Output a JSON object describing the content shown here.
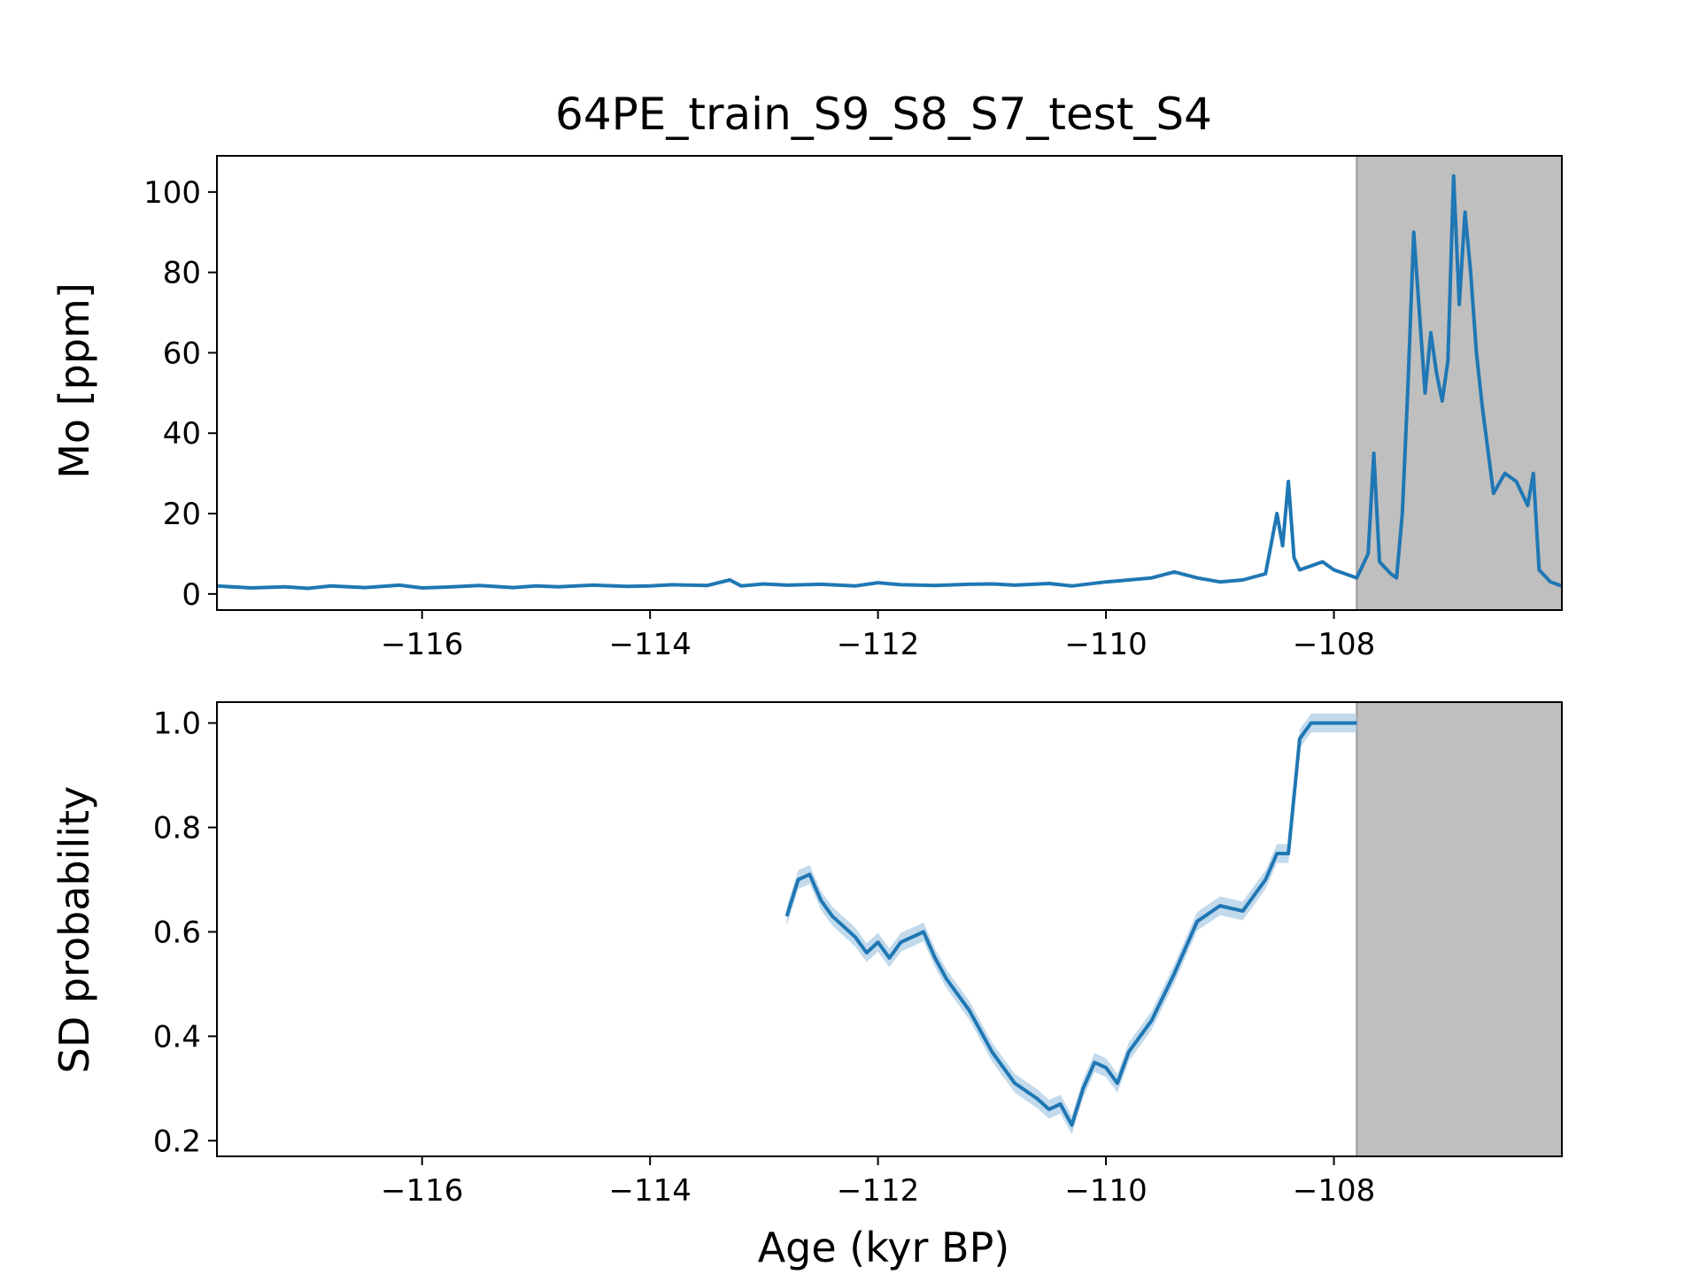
{
  "figure": {
    "title": "64PE_train_S9_S8_S7_test_S4",
    "xlabel": "Age (kyr BP)",
    "shade_color": "#bfbfbf",
    "line_color": "#1f77b4",
    "band_color": "#aecde6"
  },
  "chart_data": [
    {
      "type": "line",
      "title": "64PE_train_S9_S8_S7_test_S4",
      "xlabel": "",
      "ylabel": "Mo [ppm]",
      "xlim": [
        -117.8,
        -106.0
      ],
      "ylim": [
        -4,
        109
      ],
      "xticks": [
        -116,
        -114,
        -112,
        -110,
        -108
      ],
      "xtick_labels": [
        "−116",
        "−114",
        "−112",
        "−110",
        "−108"
      ],
      "yticks": [
        0,
        20,
        40,
        60,
        80,
        100
      ],
      "ytick_labels": [
        "0",
        "20",
        "40",
        "60",
        "80",
        "100"
      ],
      "shaded_region": [
        -107.8,
        -106.0
      ],
      "grid": false,
      "series": [
        {
          "x": [
            -117.8,
            -117.5,
            -117.2,
            -117.0,
            -116.8,
            -116.5,
            -116.2,
            -116.0,
            -115.8,
            -115.5,
            -115.2,
            -115.0,
            -114.8,
            -114.5,
            -114.2,
            -114.0,
            -113.8,
            -113.5,
            -113.3,
            -113.2,
            -113.0,
            -112.8,
            -112.5,
            -112.2,
            -112.0,
            -111.8,
            -111.5,
            -111.2,
            -111.0,
            -110.8,
            -110.5,
            -110.3,
            -110.0,
            -109.8,
            -109.6,
            -109.4,
            -109.2,
            -109.0,
            -108.8,
            -108.6,
            -108.5,
            -108.45,
            -108.4,
            -108.35,
            -108.3,
            -108.2,
            -108.1,
            -108.0,
            -107.9,
            -107.8,
            -107.7,
            -107.65,
            -107.6,
            -107.5,
            -107.45,
            -107.4,
            -107.35,
            -107.3,
            -107.25,
            -107.2,
            -107.15,
            -107.1,
            -107.05,
            -107.0,
            -106.95,
            -106.9,
            -106.85,
            -106.8,
            -106.75,
            -106.7,
            -106.6,
            -106.5,
            -106.4,
            -106.3,
            -106.25,
            -106.2,
            -106.1,
            -106.0
          ],
          "y": [
            2,
            1.5,
            1.8,
            1.4,
            2,
            1.6,
            2.2,
            1.5,
            1.7,
            2.1,
            1.6,
            2,
            1.8,
            2.2,
            1.9,
            2,
            2.3,
            2.1,
            3.5,
            2,
            2.5,
            2.2,
            2.4,
            2,
            2.8,
            2.3,
            2.1,
            2.4,
            2.5,
            2.2,
            2.6,
            2,
            3,
            3.5,
            4,
            5.5,
            4,
            3,
            3.5,
            5,
            20,
            12,
            28,
            9,
            6,
            7,
            8,
            6,
            5,
            4,
            10,
            35,
            8,
            5,
            4,
            20,
            52,
            90,
            70,
            50,
            65,
            55,
            48,
            58,
            104,
            72,
            95,
            80,
            60,
            47,
            25,
            30,
            28,
            22,
            30,
            6,
            3,
            2
          ]
        }
      ]
    },
    {
      "type": "line",
      "title": "",
      "xlabel": "Age (kyr BP)",
      "ylabel": "SD probability",
      "xlim": [
        -117.8,
        -106.0
      ],
      "ylim": [
        0.17,
        1.04
      ],
      "xticks": [
        -116,
        -114,
        -112,
        -110,
        -108
      ],
      "xtick_labels": [
        "−116",
        "−114",
        "−112",
        "−110",
        "−108"
      ],
      "yticks": [
        0.2,
        0.4,
        0.6,
        0.8,
        1.0
      ],
      "ytick_labels": [
        "0.2",
        "0.4",
        "0.6",
        "0.8",
        "1.0"
      ],
      "shaded_region": [
        -107.8,
        -106.0
      ],
      "grid": false,
      "series": [
        {
          "x": [
            -112.8,
            -112.7,
            -112.6,
            -112.5,
            -112.4,
            -112.2,
            -112.1,
            -112.0,
            -111.9,
            -111.8,
            -111.6,
            -111.5,
            -111.4,
            -111.2,
            -111.0,
            -110.8,
            -110.6,
            -110.5,
            -110.4,
            -110.3,
            -110.2,
            -110.1,
            -110.0,
            -109.9,
            -109.8,
            -109.6,
            -109.4,
            -109.2,
            -109.0,
            -108.8,
            -108.6,
            -108.5,
            -108.4,
            -108.3,
            -108.2,
            -108.0,
            -107.8
          ],
          "y": [
            0.63,
            0.7,
            0.71,
            0.66,
            0.63,
            0.59,
            0.56,
            0.58,
            0.55,
            0.58,
            0.6,
            0.55,
            0.51,
            0.45,
            0.37,
            0.31,
            0.28,
            0.26,
            0.27,
            0.23,
            0.3,
            0.35,
            0.34,
            0.31,
            0.37,
            0.43,
            0.52,
            0.62,
            0.65,
            0.64,
            0.7,
            0.75,
            0.75,
            0.97,
            1.0,
            1.0,
            1.0
          ],
          "band_halfwidth": 0.018
        }
      ]
    }
  ]
}
